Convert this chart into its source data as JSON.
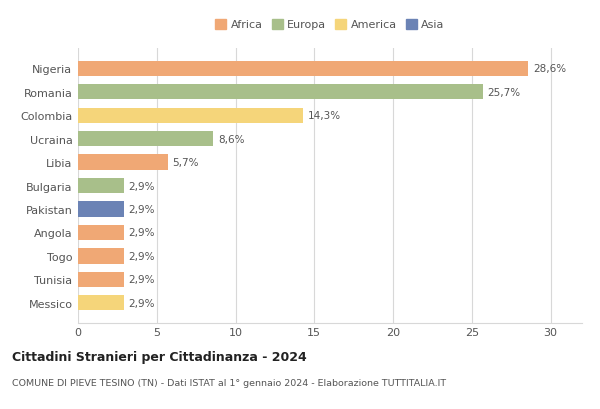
{
  "countries": [
    "Nigeria",
    "Romania",
    "Colombia",
    "Ucraina",
    "Libia",
    "Bulgaria",
    "Pakistan",
    "Angola",
    "Togo",
    "Tunisia",
    "Messico"
  ],
  "values": [
    28.6,
    25.7,
    14.3,
    8.6,
    5.7,
    2.9,
    2.9,
    2.9,
    2.9,
    2.9,
    2.9
  ],
  "labels": [
    "28,6%",
    "25,7%",
    "14,3%",
    "8,6%",
    "5,7%",
    "2,9%",
    "2,9%",
    "2,9%",
    "2,9%",
    "2,9%",
    "2,9%"
  ],
  "colors": [
    "#f0a875",
    "#a8bf8a",
    "#f5d57a",
    "#a8bf8a",
    "#f0a875",
    "#a8bf8a",
    "#6b83b5",
    "#f0a875",
    "#f0a875",
    "#f0a875",
    "#f5d57a"
  ],
  "legend": {
    "Africa": "#f0a875",
    "Europa": "#a8bf8a",
    "America": "#f5d57a",
    "Asia": "#6b83b5"
  },
  "xlim": [
    0,
    32
  ],
  "xticks": [
    0,
    5,
    10,
    15,
    20,
    25,
    30
  ],
  "title": "Cittadini Stranieri per Cittadinanza - 2024",
  "subtitle": "COMUNE DI PIEVE TESINO (TN) - Dati ISTAT al 1° gennaio 2024 - Elaborazione TUTTITALIA.IT",
  "background_color": "#ffffff",
  "grid_color": "#d8d8d8"
}
